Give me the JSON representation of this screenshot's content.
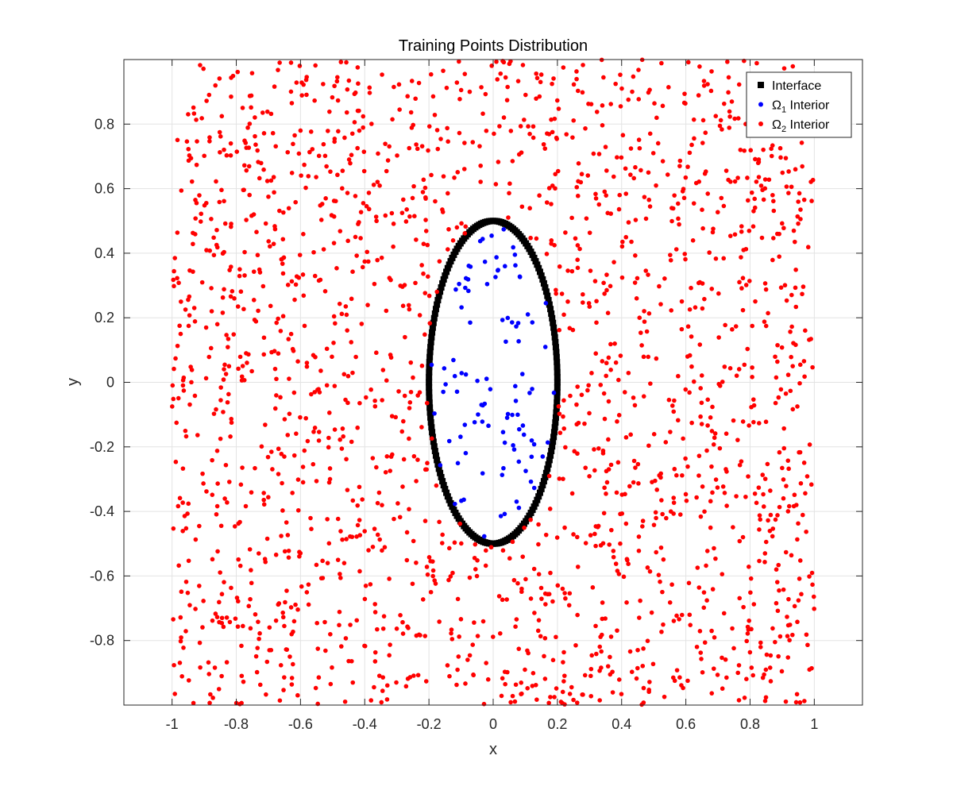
{
  "chart_data": {
    "type": "scatter",
    "title": "Training Points Distribution",
    "xlabel": "x",
    "ylabel": "y",
    "xlim": [
      -1.15,
      1.15
    ],
    "ylim": [
      -1.0,
      1.0
    ],
    "grid": true,
    "legend_position": "top-right",
    "x_ticks": [
      -1,
      -0.8,
      -0.6,
      -0.4,
      -0.2,
      0,
      0.2,
      0.4,
      0.6,
      0.8,
      1
    ],
    "x_tick_labels": [
      "-1",
      "-0.8",
      "-0.6",
      "-0.4",
      "-0.2",
      "0",
      "0.2",
      "0.4",
      "0.6",
      "0.8",
      "1"
    ],
    "y_ticks": [
      -0.8,
      -0.6,
      -0.4,
      -0.2,
      0,
      0.2,
      0.4,
      0.6,
      0.8
    ],
    "y_tick_labels": [
      "-0.8",
      "-0.6",
      "-0.4",
      "-0.2",
      "0",
      "0.2",
      "0.4",
      "0.6",
      "0.8"
    ],
    "series": [
      {
        "name": "Interface",
        "legend_main": "Interface",
        "legend_sub": "",
        "legend_tail": "",
        "color": "#000000",
        "marker": "square",
        "generator": "ellipse",
        "center": [
          0,
          0
        ],
        "semi_axes": [
          0.2,
          0.5
        ],
        "count": 200
      },
      {
        "name": "Ω1 Interior",
        "legend_main": "Ω",
        "legend_sub": "1",
        "legend_tail": " Interior",
        "color": "#0000ff",
        "marker": "dot",
        "generator": "inside_ellipse",
        "center": [
          0,
          0
        ],
        "semi_axes": [
          0.2,
          0.5
        ],
        "count": 100
      },
      {
        "name": "Ω2 Interior",
        "legend_main": "Ω",
        "legend_sub": "2",
        "legend_tail": " Interior",
        "color": "#ff0000",
        "marker": "dot",
        "generator": "outside_ellipse",
        "domain": [
          [
            -1,
            1
          ],
          [
            -1,
            1
          ]
        ],
        "center": [
          0,
          0
        ],
        "semi_axes": [
          0.2,
          0.5
        ],
        "count": 1900
      }
    ]
  }
}
